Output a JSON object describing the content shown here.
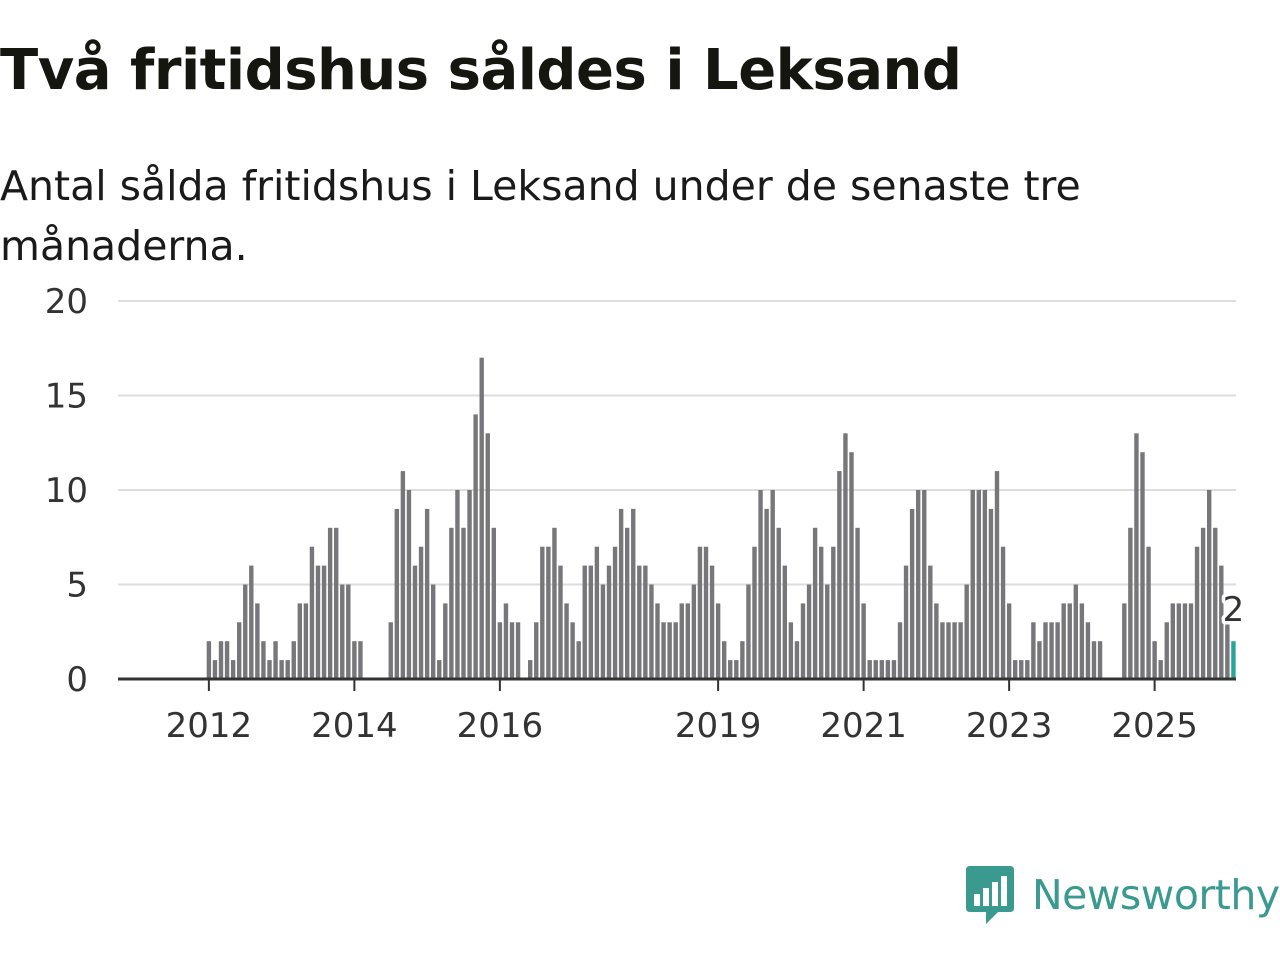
{
  "title": "Två fritidshus såldes i Leksand",
  "subtitle": "Antal sålda fritidshus i Leksand under de senaste tre månaderna.",
  "brand": {
    "name": "Newsworthy",
    "logo": "newsworthy-bar-chart-logo"
  },
  "colors": {
    "bar": "#77777b",
    "highlight": "#2aa398",
    "grid": "#dddddd",
    "axis": "#333333",
    "brand": "#3a9a90"
  },
  "chart_data": {
    "type": "bar",
    "title": "Två fritidshus såldes i Leksand",
    "xlabel": "",
    "ylabel": "",
    "ylim": [
      0,
      20
    ],
    "yticks": [
      0,
      5,
      10,
      15,
      20
    ],
    "xticks": [
      {
        "label": "2012",
        "index": 6
      },
      {
        "label": "2014",
        "index": 30
      },
      {
        "label": "2016",
        "index": 54
      },
      {
        "label": "2019",
        "index": 90
      },
      {
        "label": "2021",
        "index": 114
      },
      {
        "label": "2023",
        "index": 138
      },
      {
        "label": "2025",
        "index": 162
      }
    ],
    "highlight_label": "2",
    "values": [
      0,
      0,
      0,
      0,
      0,
      0,
      2,
      1,
      2,
      2,
      1,
      3,
      5,
      6,
      4,
      2,
      1,
      2,
      1,
      1,
      2,
      4,
      4,
      7,
      6,
      6,
      8,
      8,
      5,
      5,
      2,
      2,
      0,
      0,
      0,
      0,
      3,
      9,
      11,
      10,
      6,
      7,
      9,
      5,
      1,
      4,
      8,
      10,
      8,
      10,
      14,
      17,
      13,
      8,
      3,
      4,
      3,
      3,
      0,
      1,
      3,
      7,
      7,
      8,
      6,
      4,
      3,
      2,
      6,
      6,
      7,
      5,
      6,
      7,
      9,
      8,
      9,
      6,
      6,
      5,
      4,
      3,
      3,
      3,
      4,
      4,
      5,
      7,
      7,
      6,
      4,
      2,
      1,
      1,
      2,
      5,
      7,
      10,
      9,
      10,
      8,
      6,
      3,
      2,
      4,
      5,
      8,
      7,
      5,
      7,
      11,
      13,
      12,
      8,
      4,
      1,
      1,
      1,
      1,
      1,
      3,
      6,
      9,
      10,
      10,
      6,
      4,
      3,
      3,
      3,
      3,
      5,
      10,
      10,
      10,
      9,
      11,
      7,
      4,
      1,
      1,
      1,
      3,
      2,
      3,
      3,
      3,
      4,
      4,
      5,
      4,
      3,
      2,
      2,
      0,
      0,
      0,
      4,
      8,
      13,
      12,
      7,
      2,
      1,
      3,
      4,
      4,
      4,
      4,
      7,
      8,
      10,
      8,
      6,
      3,
      2
    ]
  }
}
